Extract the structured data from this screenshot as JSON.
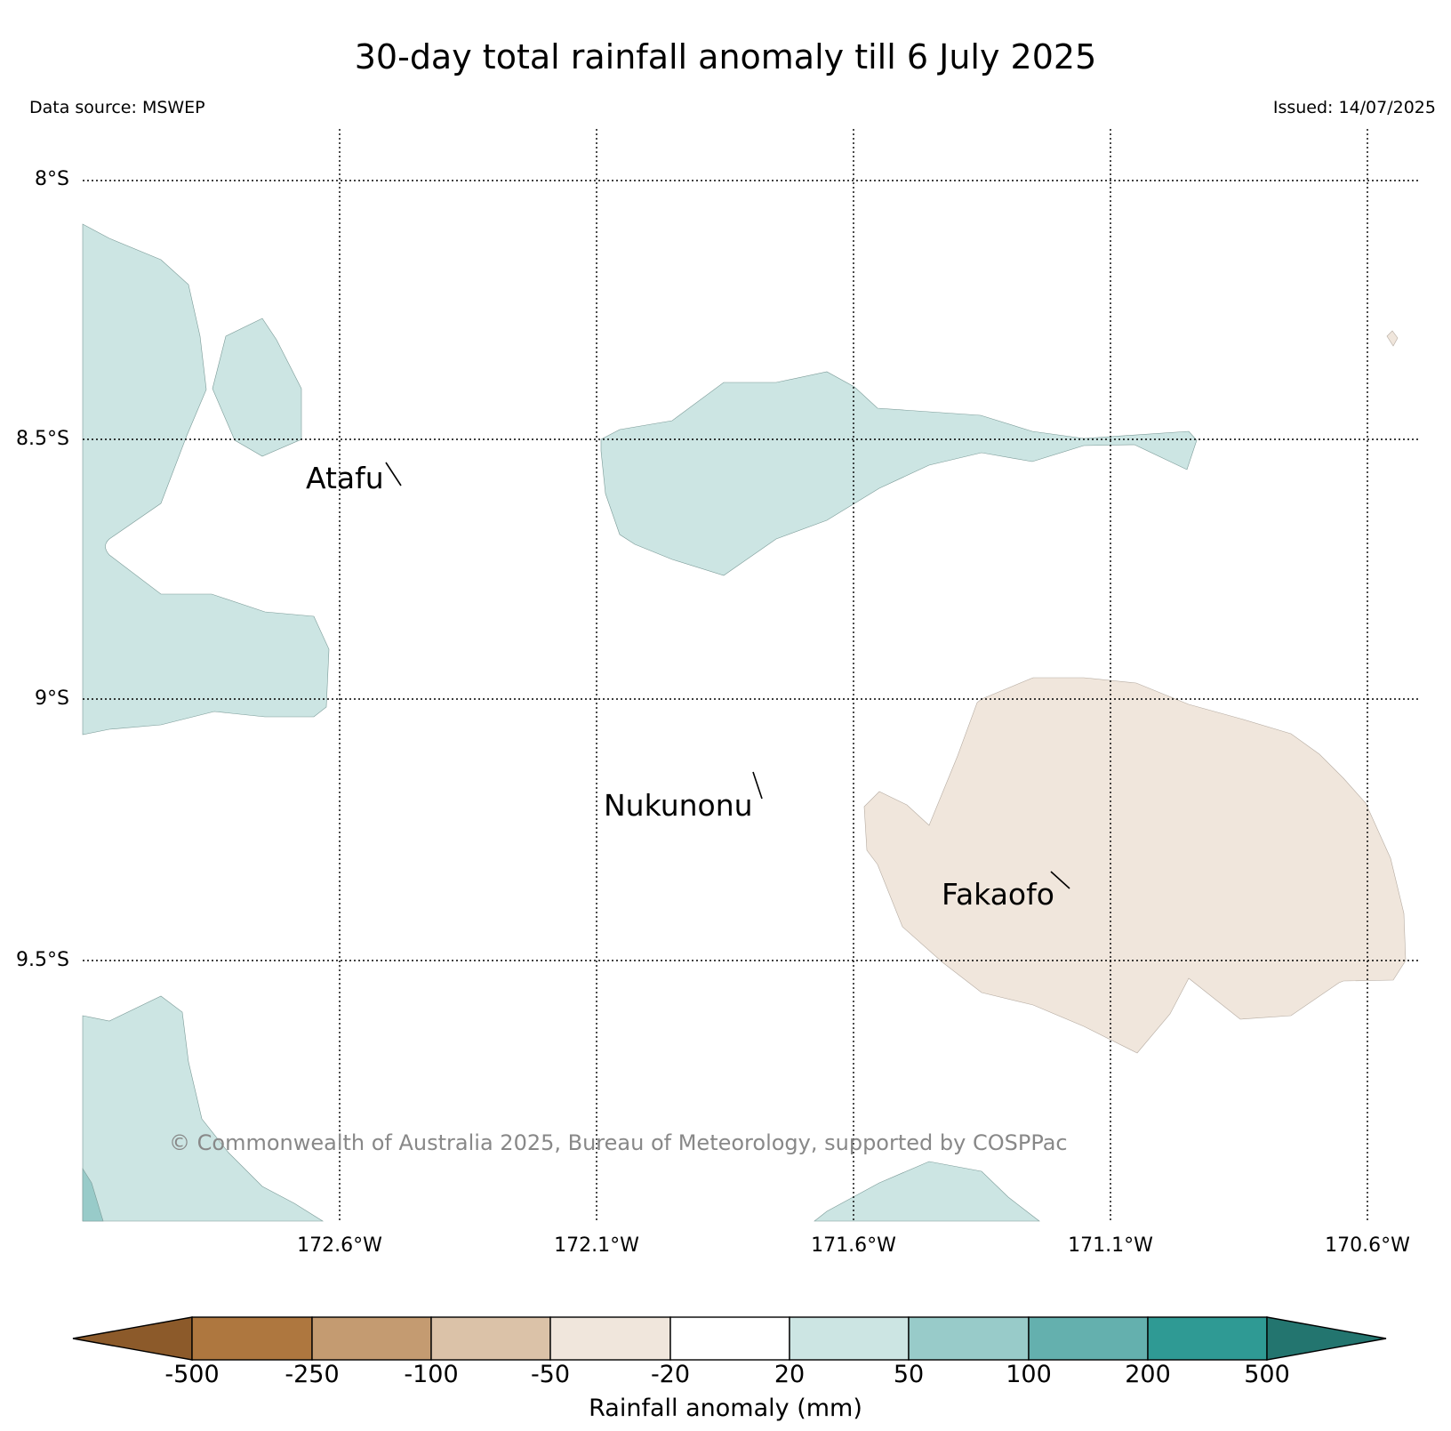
{
  "title": "30-day total rainfall anomaly till 6 July 2025",
  "data_source": "Data source: MSWEP",
  "issued": "Issued: 14/07/2025",
  "lat_labels": [
    "8°S",
    "8.5°S",
    "9°S",
    "9.5°S"
  ],
  "lon_labels": [
    "172.6°W",
    "172.1°W",
    "171.6°W",
    "171.1°W",
    "170.6°W"
  ],
  "places": [
    "Atafu",
    "Nukunonu",
    "Fakaofo"
  ],
  "copyright": "© Commonwealth of Australia 2025, Bureau of Meteorology, supported by COSPPac",
  "colorbar": {
    "title": "Rainfall anomaly (mm)",
    "ticks": [
      "-500",
      "-250",
      "-100",
      "-50",
      "-20",
      "20",
      "50",
      "100",
      "200",
      "500"
    ],
    "colors": [
      "#8c5a2a",
      "#ae773f",
      "#c49b71",
      "#dbc2a8",
      "#f0e6dc",
      "#ffffff",
      "#cce5e3",
      "#98cbc9",
      "#64b0ae",
      "#2f9a94",
      "#23756f"
    ]
  },
  "colors": {
    "wet_20_50": "#cce5e3",
    "wet_50_100": "#98cbc9",
    "dry_m50_m20": "#f0e6dc"
  }
}
